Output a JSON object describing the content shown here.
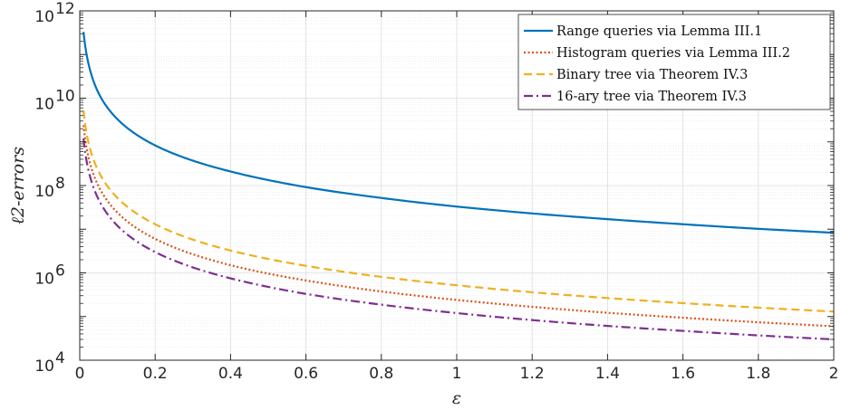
{
  "chart_data": {
    "type": "line",
    "xlabel": "ε",
    "ylabel": "ℓ2-errors",
    "xlim": [
      0,
      2
    ],
    "ylim": [
      10000,
      1000000000000
    ],
    "yscale": "log",
    "grid": true,
    "minor_grid": true,
    "legend_position": "top-right",
    "x_ticks": [
      "0",
      "0.2",
      "0.4",
      "0.6",
      "0.8",
      "1",
      "1.2",
      "1.4",
      "1.6",
      "1.8",
      "2"
    ],
    "y_ticks": [
      {
        "base": "10",
        "exp": "4"
      },
      {
        "base": "10",
        "exp": "6"
      },
      {
        "base": "10",
        "exp": "8"
      },
      {
        "base": "10",
        "exp": "10"
      },
      {
        "base": "10",
        "exp": "12"
      }
    ],
    "series": [
      {
        "name": "Range queries via Lemma III.1",
        "color": "#0072BD",
        "style": "solid",
        "points": [
          [
            0.01,
            330000000000.0
          ],
          [
            0.02,
            83000000000.0
          ],
          [
            0.05,
            13000000000.0
          ],
          [
            0.1,
            3300000000.0
          ],
          [
            0.2,
            830000000.0
          ],
          [
            0.4,
            210000000.0
          ],
          [
            0.6,
            92000000.0
          ],
          [
            0.8,
            52000000.0
          ],
          [
            1.0,
            33000000.0
          ],
          [
            1.2,
            23000000.0
          ],
          [
            1.4,
            17000000.0
          ],
          [
            1.6,
            13000000.0
          ],
          [
            1.8,
            10200000.0
          ],
          [
            2.0,
            8300000.0
          ]
        ]
      },
      {
        "name": "Histogram queries via Lemma III.2",
        "color": "#D95319",
        "style": "dotted",
        "points": [
          [
            0.01,
            2400000000.0
          ],
          [
            0.02,
            600000000.0
          ],
          [
            0.05,
            96000000.0
          ],
          [
            0.1,
            24000000.0
          ],
          [
            0.2,
            6000000.0
          ],
          [
            0.4,
            1500000.0
          ],
          [
            0.6,
            670000.0
          ],
          [
            0.8,
            375000.0
          ],
          [
            1.0,
            240000.0
          ],
          [
            1.2,
            167000.0
          ],
          [
            1.4,
            122000.0
          ],
          [
            1.6,
            94000.0
          ],
          [
            1.8,
            74000.0
          ],
          [
            2.0,
            60000.0
          ]
        ]
      },
      {
        "name": "Binary tree via Theorem IV.3",
        "color": "#EDB120",
        "style": "dashed",
        "points": [
          [
            0.01,
            5200000000.0
          ],
          [
            0.02,
            1300000000.0
          ],
          [
            0.05,
            210000000.0
          ],
          [
            0.1,
            52000000.0
          ],
          [
            0.2,
            13000000.0
          ],
          [
            0.4,
            3250000.0
          ],
          [
            0.6,
            1450000.0
          ],
          [
            0.8,
            810000.0
          ],
          [
            1.0,
            520000.0
          ],
          [
            1.2,
            360000.0
          ],
          [
            1.4,
            265000.0
          ],
          [
            1.6,
            203000.0
          ],
          [
            1.8,
            160000.0
          ],
          [
            2.0,
            130000.0
          ]
        ]
      },
      {
        "name": "16-ary tree via Theorem IV.3",
        "color": "#7E2F8E",
        "style": "dashdot",
        "points": [
          [
            0.01,
            1200000000.0
          ],
          [
            0.02,
            300000000.0
          ],
          [
            0.05,
            48000000.0
          ],
          [
            0.1,
            12000000.0
          ],
          [
            0.2,
            3000000.0
          ],
          [
            0.4,
            750000.0
          ],
          [
            0.6,
            330000.0
          ],
          [
            0.8,
            187000.0
          ],
          [
            1.0,
            120000.0
          ],
          [
            1.2,
            83000.0
          ],
          [
            1.4,
            61000.0
          ],
          [
            1.6,
            47000.0
          ],
          [
            1.8,
            37000.0
          ],
          [
            2.0,
            30000.0
          ]
        ]
      }
    ]
  }
}
